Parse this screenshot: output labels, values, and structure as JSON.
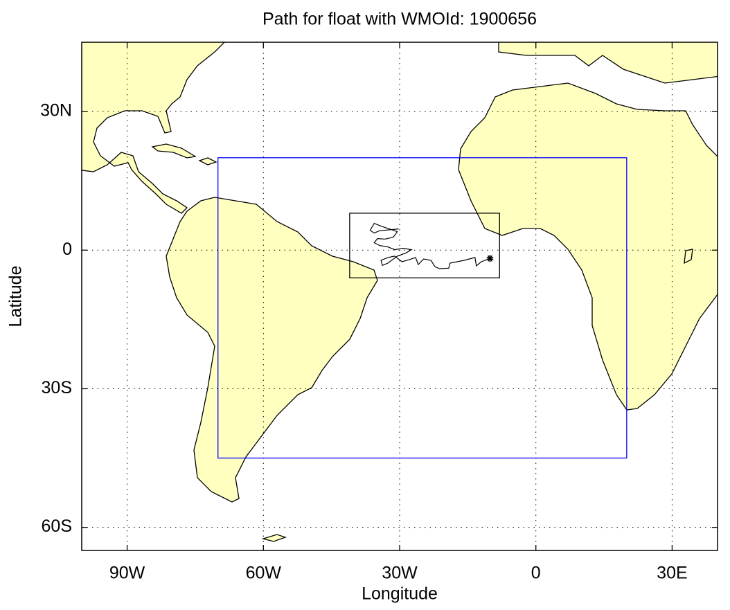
{
  "chart_data": {
    "type": "map",
    "title": "Path for float with WMOId: 1900656",
    "xlabel": "Longitude",
    "ylabel": "Latitude",
    "xlim": [
      -100,
      40
    ],
    "ylim": [
      -65,
      45
    ],
    "xticks": [
      {
        "value": -90,
        "label": "90W"
      },
      {
        "value": -60,
        "label": "60W"
      },
      {
        "value": -30,
        "label": "30W"
      },
      0,
      {
        "value": 30,
        "label": "30E"
      }
    ],
    "yticks": [
      {
        "value": 30,
        "label": "30N"
      },
      0,
      {
        "value": -30,
        "label": "30S"
      },
      {
        "value": -60,
        "label": "60S"
      }
    ],
    "grid": true,
    "land_color": "#ffffc0",
    "boxes": [
      {
        "color": "#0000ff",
        "lon": [
          -70,
          20
        ],
        "lat": [
          -45,
          20
        ]
      },
      {
        "color": "#000000",
        "lon": [
          -41,
          -8
        ],
        "lat": [
          -6,
          8
        ]
      }
    ],
    "track": {
      "color": "#000000",
      "lon": [
        -10.1,
        -12.0,
        -13.1,
        -13.4,
        -15.8,
        -18.9,
        -19.2,
        -21.2,
        -22.2,
        -23.1,
        -24.7,
        -25.9,
        -26.5,
        -28.0,
        -29.5,
        -31.1,
        -32.6,
        -34.1,
        -33.8,
        -32.6,
        -30.5,
        -28.6,
        -27.4,
        -29.2,
        -31.1,
        -32.6,
        -34.4,
        -35.6,
        -34.9,
        -33.2,
        -31.4,
        -30.5,
        -32.3,
        -34.1,
        -35.6,
        -36.5,
        -35.6,
        -34.4,
        -30.2
      ],
      "lat": [
        -1.8,
        -2.5,
        -3.4,
        -1.6,
        -2.2,
        -2.8,
        -3.9,
        -4.0,
        -3.6,
        -2.2,
        -1.9,
        -3.1,
        -1.6,
        -2.1,
        -2.5,
        -1.3,
        -1.6,
        -2.2,
        -3.3,
        -2.8,
        -1.3,
        -0.6,
        0.1,
        0.4,
        0.1,
        0.7,
        1.0,
        1.6,
        2.5,
        2.4,
        2.8,
        4.0,
        4.6,
        5.2,
        5.8,
        4.3,
        3.7,
        4.2,
        4.6
      ]
    }
  }
}
